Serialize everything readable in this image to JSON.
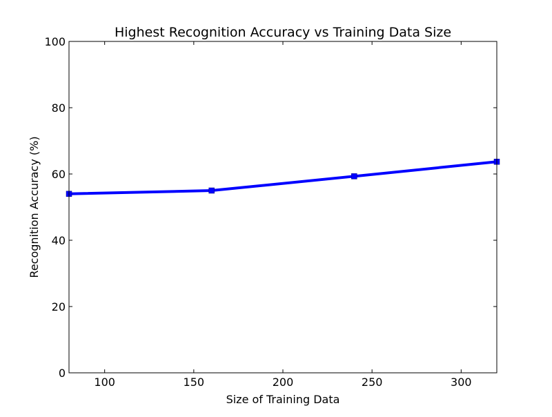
{
  "chart_data": {
    "type": "line",
    "title": "Highest Recognition Accuracy vs Training Data Size",
    "xlabel": "Size of Training Data",
    "ylabel": "Recognition Accuracy (%)",
    "xlim": [
      80,
      320
    ],
    "ylim": [
      0,
      100
    ],
    "xticks": [
      100,
      150,
      200,
      250,
      300
    ],
    "yticks": [
      0,
      20,
      40,
      60,
      80,
      100
    ],
    "grid": false,
    "series": [
      {
        "x": [
          80,
          160,
          240,
          320
        ],
        "y": [
          54.0,
          55.0,
          59.3,
          63.7
        ],
        "color": "#0000ff",
        "marker": "square"
      }
    ]
  }
}
